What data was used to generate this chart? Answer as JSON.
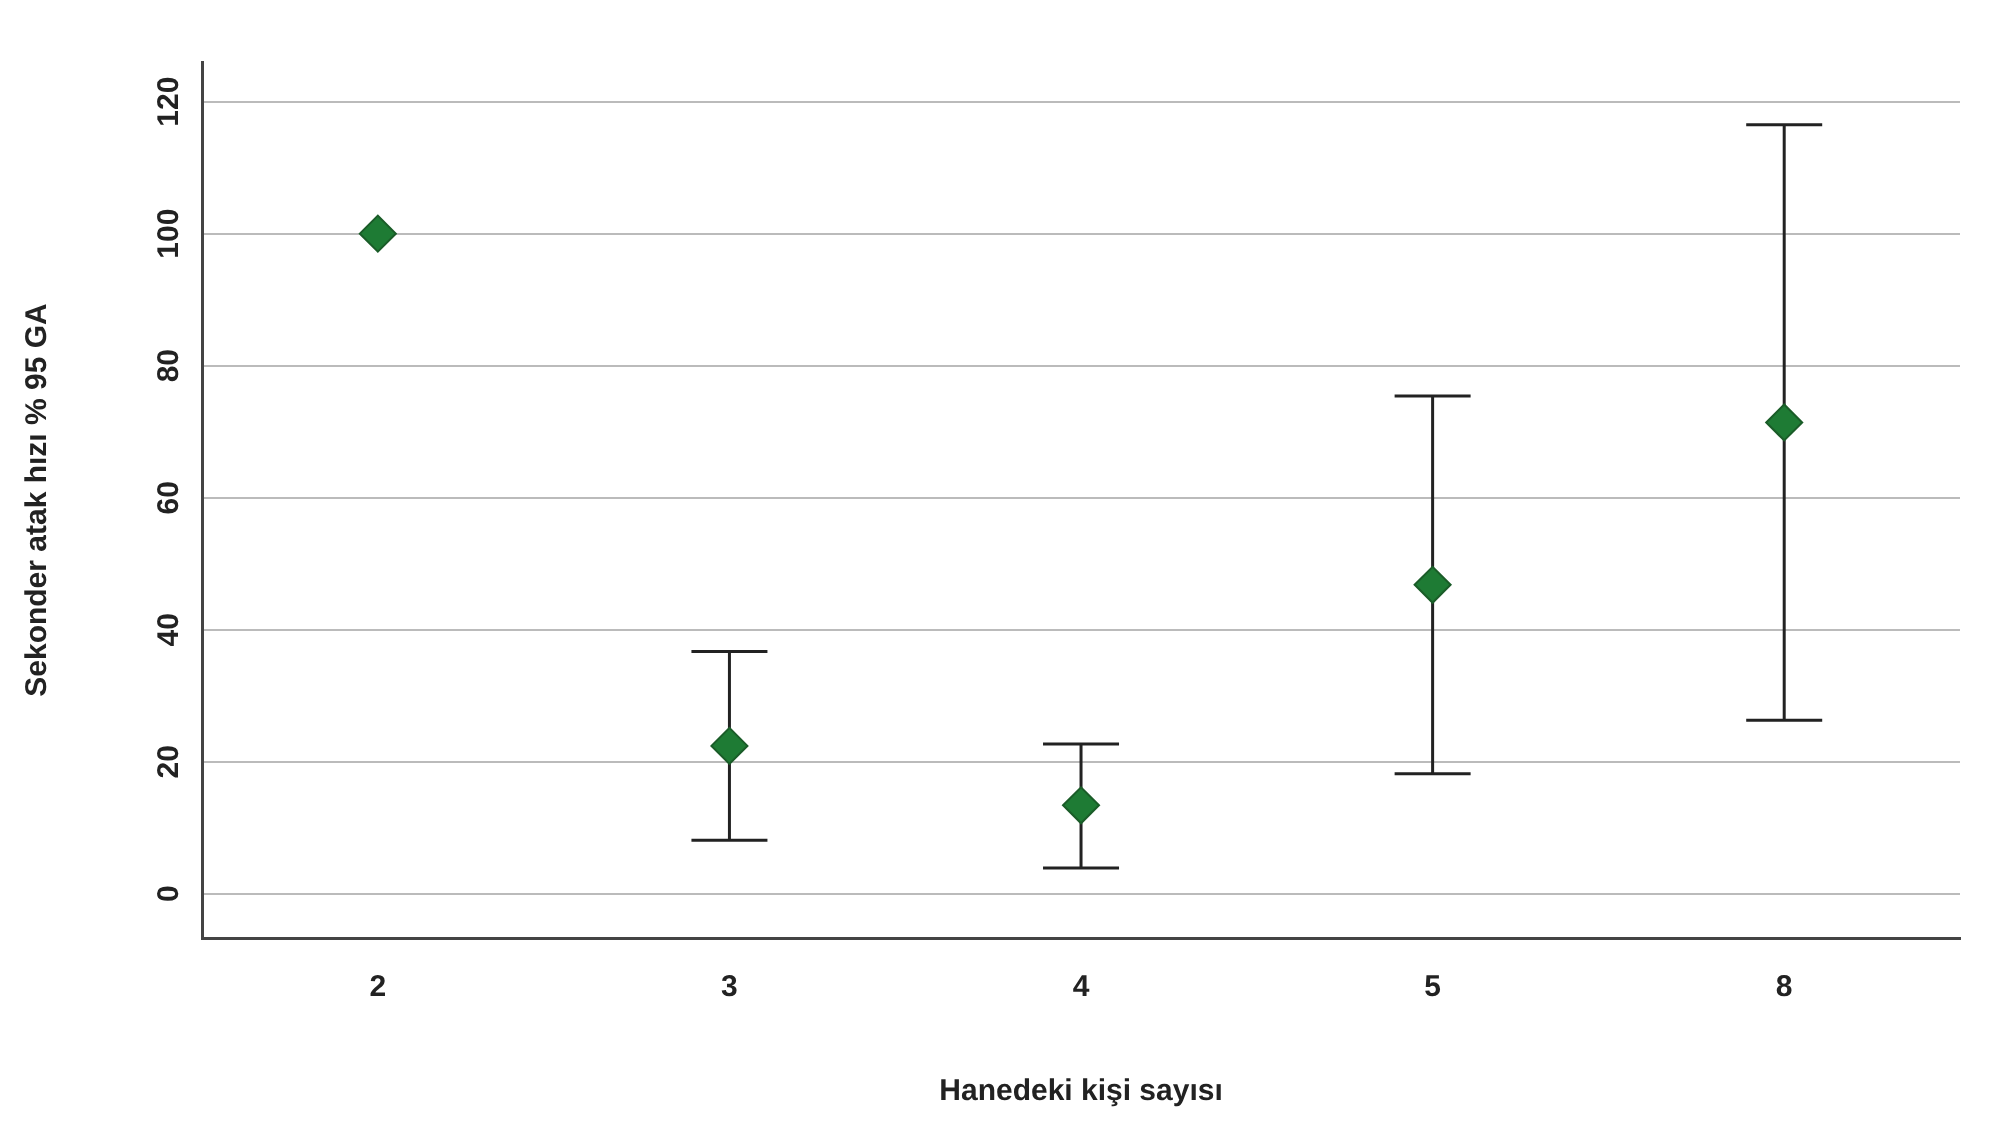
{
  "chart_data": {
    "type": "scatter",
    "xlabel": "Hanedeki kişi sayısı",
    "ylabel": "Sekonder atak hızı % 95 GA",
    "categories": [
      "2",
      "3",
      "4",
      "5",
      "8"
    ],
    "values": [
      100,
      22.4,
      13.4,
      46.8,
      71.4
    ],
    "errors": [
      null,
      [
        8.1,
        36.7
      ],
      [
        3.9,
        22.7
      ],
      [
        18.2,
        75.4
      ],
      [
        26.3,
        116.5
      ]
    ],
    "color": "#1e7b34",
    "marker": "diamond",
    "grid": "y",
    "legend": false,
    "ylim": [
      -6.7,
      126
    ],
    "yticks": [
      0,
      20,
      40,
      60,
      80,
      100,
      120
    ]
  }
}
